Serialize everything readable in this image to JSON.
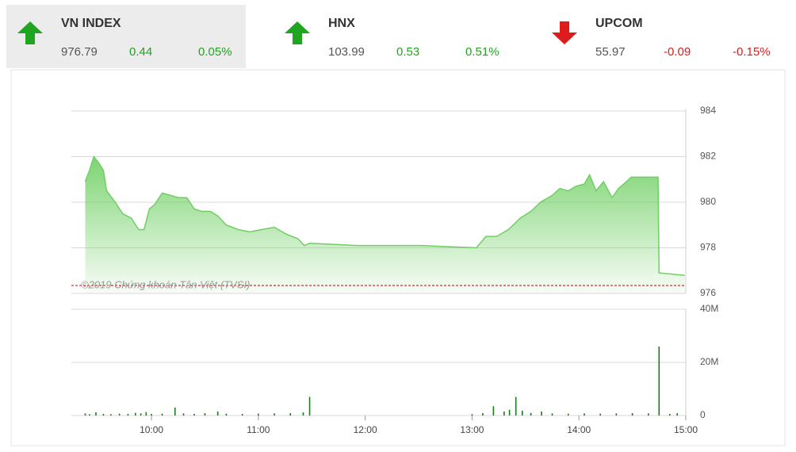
{
  "indices": [
    {
      "name": "VN INDEX",
      "value": "976.79",
      "change": "0.44",
      "percent": "0.05%",
      "direction": "up",
      "selected": true
    },
    {
      "name": "HNX",
      "value": "103.99",
      "change": "0.53",
      "percent": "0.51%",
      "direction": "up",
      "selected": false
    },
    {
      "name": "UPCOM",
      "value": "55.97",
      "change": "-0.09",
      "percent": "-0.15%",
      "direction": "down",
      "selected": false
    }
  ],
  "chart_data": [
    {
      "type": "area",
      "color": "#6fcf63",
      "x": [
        9.38,
        9.42,
        9.46,
        9.51,
        9.55,
        9.58,
        9.66,
        9.73,
        9.81,
        9.88,
        9.93,
        9.98,
        10.03,
        10.1,
        10.18,
        10.25,
        10.33,
        10.4,
        10.47,
        10.55,
        10.62,
        10.7,
        10.81,
        10.92,
        11.03,
        11.15,
        11.26,
        11.37,
        11.43,
        11.48,
        11.93,
        12.52,
        13.04,
        13.13,
        13.23,
        13.34,
        13.45,
        13.55,
        13.64,
        13.75,
        13.82,
        13.9,
        13.97,
        14.05,
        14.1,
        14.16,
        14.23,
        14.31,
        14.37,
        14.42,
        14.49,
        14.6,
        14.74,
        14.75,
        14.99
      ],
      "values": [
        980.9,
        981.4,
        982.0,
        981.7,
        981.4,
        980.5,
        980.0,
        979.5,
        979.3,
        978.8,
        978.8,
        979.7,
        979.9,
        980.4,
        980.3,
        980.2,
        980.2,
        979.7,
        979.6,
        979.6,
        979.4,
        979.0,
        978.8,
        978.7,
        978.8,
        978.9,
        978.6,
        978.4,
        978.1,
        978.2,
        978.1,
        978.1,
        978.0,
        978.5,
        978.5,
        978.8,
        979.3,
        979.6,
        980.0,
        980.3,
        980.6,
        980.5,
        980.7,
        980.8,
        981.2,
        980.5,
        980.9,
        980.2,
        980.6,
        980.8,
        981.1,
        981.1,
        981.1,
        976.9,
        976.79
      ],
      "xlim": [
        9.25,
        15
      ],
      "ylim": [
        976,
        984
      ],
      "yticks": [
        976,
        978,
        980,
        982,
        984
      ],
      "grid": true,
      "reference": 976.35,
      "reference_color": "#c00000",
      "watermark": "©2019 Chứng khoán Tân Việt (TVSI)"
    },
    {
      "type": "bar",
      "color": "#1e7a1e",
      "x": [
        9.38,
        9.42,
        9.48,
        9.55,
        9.62,
        9.7,
        9.78,
        9.85,
        9.9,
        9.95,
        10.0,
        10.1,
        10.22,
        10.3,
        10.4,
        10.5,
        10.62,
        10.7,
        10.85,
        11.0,
        11.15,
        11.3,
        11.42,
        11.48,
        13.0,
        13.1,
        13.2,
        13.3,
        13.35,
        13.41,
        13.47,
        13.55,
        13.65,
        13.75,
        13.9,
        14.05,
        14.2,
        14.35,
        14.5,
        14.65,
        14.75,
        14.85,
        14.92
      ],
      "values": [
        0.8,
        0.5,
        1.2,
        0.6,
        0.5,
        0.7,
        0.6,
        1.0,
        0.8,
        1.3,
        0.6,
        0.7,
        3.0,
        0.8,
        0.6,
        0.9,
        1.5,
        0.7,
        0.6,
        0.7,
        0.8,
        0.9,
        1.2,
        7.0,
        0.5,
        0.9,
        3.5,
        1.5,
        2.2,
        7.0,
        1.8,
        1.0,
        1.5,
        0.8,
        0.7,
        0.8,
        0.7,
        0.8,
        0.9,
        0.8,
        26.0,
        0.6,
        0.9
      ],
      "xlim": [
        9.25,
        15
      ],
      "ylim": [
        0,
        40
      ],
      "yticks": [
        0,
        {
          "value": 20,
          "label": "20M"
        },
        {
          "value": 40,
          "label": "40M"
        }
      ],
      "grid": true,
      "xticks": [
        {
          "value": 10,
          "label": "10:00"
        },
        {
          "value": 11,
          "label": "11:00"
        },
        {
          "value": 12,
          "label": "12:00"
        },
        {
          "value": 13,
          "label": "13:00"
        },
        {
          "value": 14,
          "label": "14:00"
        },
        {
          "value": 15,
          "label": "15:00"
        }
      ]
    }
  ]
}
